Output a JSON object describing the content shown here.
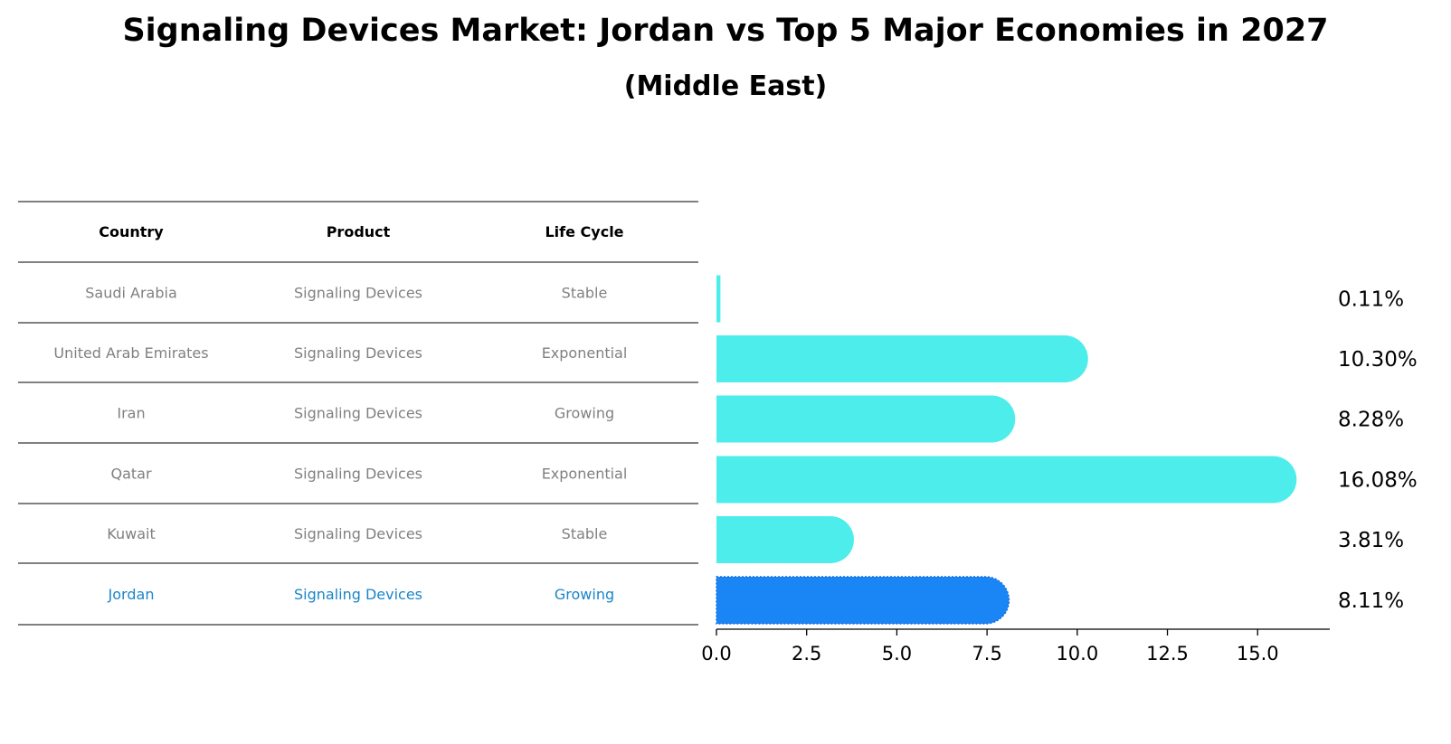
{
  "chart_data": {
    "type": "bar",
    "orientation": "horizontal",
    "title": "Signaling Devices Market: Jordan vs Top 5 Major Economies in 2027",
    "subtitle": "(Middle East)",
    "table": {
      "headers": [
        "Country",
        "Product",
        "Life Cycle"
      ],
      "rows": [
        [
          "Saudi Arabia",
          "Signaling Devices",
          "Stable"
        ],
        [
          "United Arab Emirates",
          "Signaling Devices",
          "Exponential"
        ],
        [
          "Iran",
          "Signaling Devices",
          "Growing"
        ],
        [
          "Qatar",
          "Signaling Devices",
          "Exponential"
        ],
        [
          "Kuwait",
          "Signaling Devices",
          "Stable"
        ],
        [
          "Jordan",
          "Signaling Devices",
          "Growing"
        ]
      ]
    },
    "categories": [
      "Saudi Arabia",
      "United Arab Emirates",
      "Iran",
      "Qatar",
      "Kuwait",
      "Jordan"
    ],
    "values": [
      0.11,
      10.3,
      8.28,
      16.08,
      3.81,
      8.11
    ],
    "value_labels": [
      "0.11%",
      "10.30%",
      "8.28%",
      "16.08%",
      "3.81%",
      "8.11%"
    ],
    "highlight": "Jordan",
    "xlim": [
      0,
      17
    ],
    "xticks": [
      "0.0",
      "2.5",
      "5.0",
      "7.5",
      "10.0",
      "12.5",
      "15.0"
    ],
    "xtick_values": [
      0,
      2.5,
      5,
      7.5,
      10,
      12.5,
      15
    ],
    "colors": {
      "bar": "#4dedeb",
      "highlight_bar": "#1a85f5",
      "highlight_text": "#1a85c8",
      "text_muted": "#808080"
    }
  }
}
